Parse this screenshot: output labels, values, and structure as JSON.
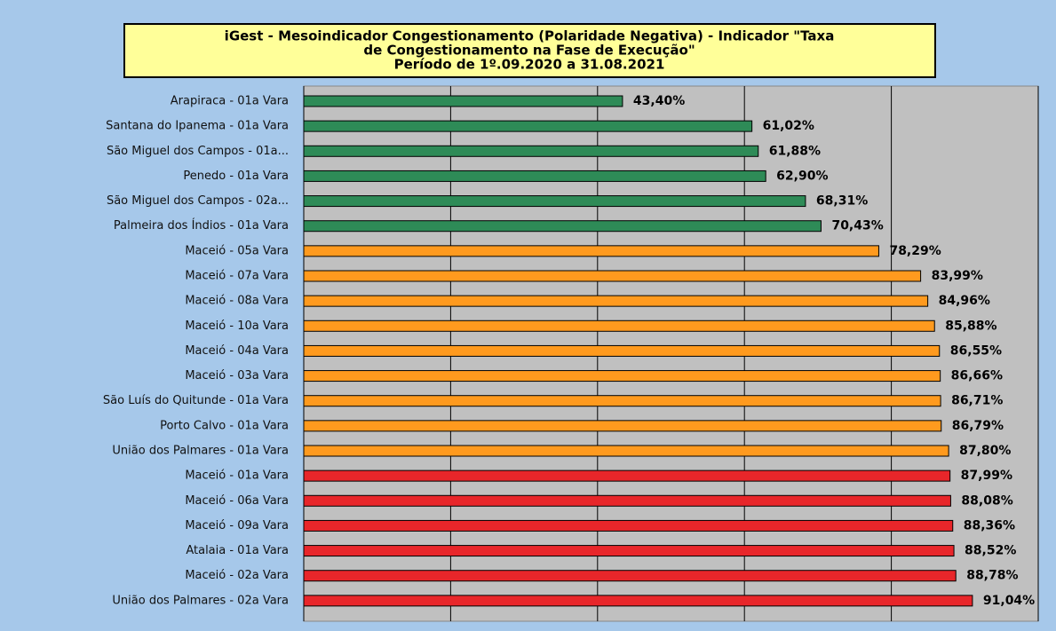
{
  "chart_data": {
    "type": "bar",
    "orientation": "horizontal",
    "title": [
      "iGest - Mesoindicador Congestionamento (Polaridade Negativa) - Indicador \"Taxa",
      "de Congestionamento na Fase de Execução\"",
      "Período de 1º.09.2020 a 31.08.2021"
    ],
    "categories": [
      "Arapiraca - 01a Vara",
      "Santana do Ipanema - 01a Vara",
      "São Miguel dos Campos - 01a...",
      "Penedo - 01a Vara",
      "São Miguel dos Campos - 02a...",
      "Palmeira dos Índios - 01a Vara",
      "Maceió - 05a Vara",
      "Maceió - 07a Vara",
      "Maceió - 08a Vara",
      "Maceió - 10a Vara",
      "Maceió - 04a Vara",
      "Maceió - 03a Vara",
      "São Luís do Quitunde - 01a Vara",
      "Porto Calvo - 01a Vara",
      "União dos Palmares - 01a Vara",
      "Maceió - 01a Vara",
      "Maceió - 06a Vara",
      "Maceió - 09a Vara",
      "Atalaia - 01a Vara",
      "Maceió - 02a Vara",
      "União dos Palmares - 02a Vara"
    ],
    "values": [
      43.4,
      61.02,
      61.88,
      62.9,
      68.31,
      70.43,
      78.29,
      83.99,
      84.96,
      85.88,
      86.55,
      86.66,
      86.71,
      86.79,
      87.8,
      87.99,
      88.08,
      88.36,
      88.52,
      88.78,
      91.04
    ],
    "value_labels": [
      "43,40%",
      "61,02%",
      "61,88%",
      "62,90%",
      "68,31%",
      "70,43%",
      "78,29%",
      "83,99%",
      "84,96%",
      "85,88%",
      "86,55%",
      "86,66%",
      "86,71%",
      "86,79%",
      "87,80%",
      "87,99%",
      "88,08%",
      "88,36%",
      "88,52%",
      "88,78%",
      "91,04%"
    ],
    "colors": [
      "#2e8b57",
      "#2e8b57",
      "#2e8b57",
      "#2e8b57",
      "#2e8b57",
      "#2e8b57",
      "#ff9a1e",
      "#ff9a1e",
      "#ff9a1e",
      "#ff9a1e",
      "#ff9a1e",
      "#ff9a1e",
      "#ff9a1e",
      "#ff9a1e",
      "#ff9a1e",
      "#e8262a",
      "#e8262a",
      "#e8262a",
      "#e8262a",
      "#e8262a",
      "#e8262a"
    ],
    "xlim": [
      0,
      100
    ],
    "xticks": [
      0,
      20,
      40,
      60,
      80,
      100
    ],
    "grid": true
  }
}
